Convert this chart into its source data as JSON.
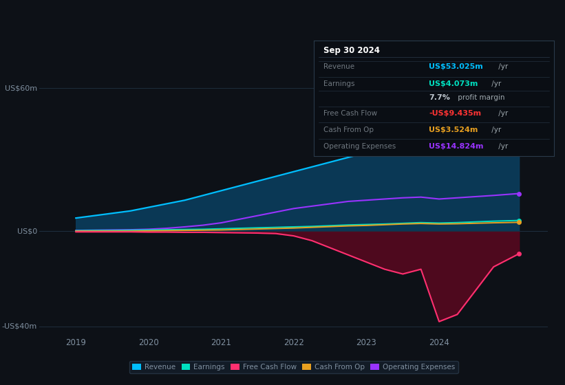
{
  "background_color": "#0d1117",
  "ylim": [
    -42,
    68
  ],
  "xlim": [
    2018.5,
    2025.5
  ],
  "years": [
    2019.0,
    2019.25,
    2019.5,
    2019.75,
    2020.0,
    2020.25,
    2020.5,
    2020.75,
    2021.0,
    2021.25,
    2021.5,
    2021.75,
    2022.0,
    2022.25,
    2022.5,
    2022.75,
    2023.0,
    2023.25,
    2023.5,
    2023.75,
    2024.0,
    2024.25,
    2024.5,
    2024.75,
    2025.1
  ],
  "revenue": [
    5.5,
    6.5,
    7.5,
    8.5,
    10,
    11.5,
    13,
    15,
    17,
    19,
    21,
    23,
    25,
    27,
    29,
    31,
    33,
    36,
    40,
    44,
    42,
    44,
    48,
    52,
    57
  ],
  "earnings": [
    0.2,
    0.3,
    0.3,
    0.4,
    0.5,
    0.6,
    0.7,
    0.8,
    1.0,
    1.2,
    1.4,
    1.6,
    1.8,
    2.0,
    2.3,
    2.6,
    2.8,
    3.0,
    3.3,
    3.6,
    3.4,
    3.6,
    3.9,
    4.2,
    4.5
  ],
  "free_cash_flow": [
    -0.3,
    -0.3,
    -0.3,
    -0.3,
    -0.4,
    -0.4,
    -0.5,
    -0.5,
    -0.6,
    -0.7,
    -0.8,
    -1.0,
    -2.0,
    -4.0,
    -7.0,
    -10.0,
    -13.0,
    -16.0,
    -18.0,
    -16.0,
    -38.0,
    -35.0,
    -25.0,
    -15.0,
    -9.5
  ],
  "cash_from_op": [
    0.0,
    0.0,
    0.0,
    0.0,
    0.1,
    0.2,
    0.3,
    0.4,
    0.5,
    0.7,
    0.9,
    1.1,
    1.3,
    1.6,
    1.9,
    2.2,
    2.4,
    2.7,
    3.0,
    3.2,
    3.0,
    3.1,
    3.3,
    3.5,
    3.7
  ],
  "operating_expenses": [
    0.3,
    0.4,
    0.5,
    0.6,
    0.8,
    1.2,
    1.8,
    2.5,
    3.5,
    5.0,
    6.5,
    8.0,
    9.5,
    10.5,
    11.5,
    12.5,
    13.0,
    13.5,
    14.0,
    14.3,
    13.5,
    14.0,
    14.5,
    15.0,
    15.8
  ],
  "revenue_color": "#00bfff",
  "earnings_color": "#00e0c0",
  "free_cash_flow_color": "#ff3070",
  "cash_from_op_color": "#e8a020",
  "operating_expenses_color": "#9933ff",
  "revenue_fill": "#0a3d5c",
  "free_cash_flow_fill": "#5a0820",
  "grid_color": "#1e2d3d",
  "text_color": "#8090a0",
  "legend_bg": "#141e2a",
  "legend_border": "#2a3a4a",
  "xtick_labels": [
    "2019",
    "2020",
    "2021",
    "2022",
    "2023",
    "2024"
  ],
  "xtick_positions": [
    2019,
    2020,
    2021,
    2022,
    2023,
    2024
  ],
  "info_box": {
    "title": "Sep 30 2024",
    "title_color": "#ffffff",
    "bg": "#0a0e14",
    "border": "#2a3a4a",
    "rows": [
      {
        "label": "Revenue",
        "value": "US$53.025m",
        "suffix": " /yr",
        "value_color": "#00bfff",
        "label_color": "#707880"
      },
      {
        "label": "Earnings",
        "value": "US$4.073m",
        "suffix": " /yr",
        "value_color": "#00e0c0",
        "label_color": "#707880"
      },
      {
        "label": "",
        "value": "7.7%",
        "suffix": " profit margin",
        "value_color": "#c0c8d0",
        "label_color": ""
      },
      {
        "label": "Free Cash Flow",
        "value": "-US$9.435m",
        "suffix": " /yr",
        "value_color": "#ff3333",
        "label_color": "#707880"
      },
      {
        "label": "Cash From Op",
        "value": "US$3.524m",
        "suffix": " /yr",
        "value_color": "#e8a020",
        "label_color": "#707880"
      },
      {
        "label": "Operating Expenses",
        "value": "US$14.824m",
        "suffix": " /yr",
        "value_color": "#9933ff",
        "label_color": "#707880"
      }
    ]
  }
}
